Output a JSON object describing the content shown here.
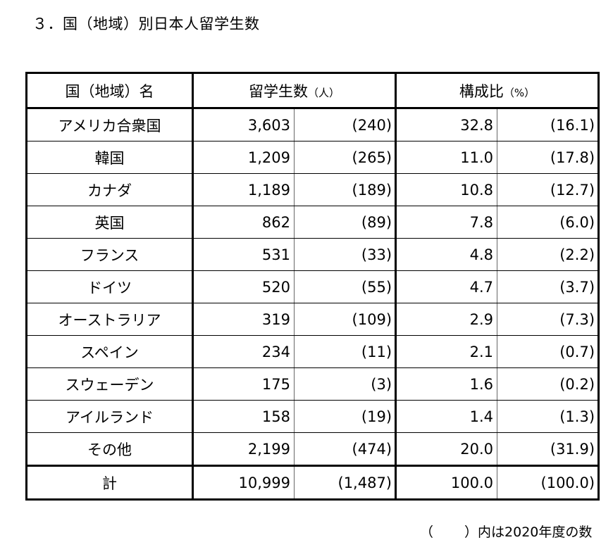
{
  "heading": "３．国（地域）別日本人留学生数",
  "header": {
    "country": "国（地域）名",
    "students": "留学生数",
    "students_unit": "（人）",
    "ratio": "構成比",
    "ratio_unit": "（%）"
  },
  "rows": [
    {
      "name": "アメリカ合衆国",
      "count": "3,603",
      "count_2020": "(240)",
      "ratio": "32.8",
      "ratio_2020": "(16.1)"
    },
    {
      "name": "韓国",
      "count": "1,209",
      "count_2020": "(265)",
      "ratio": "11.0",
      "ratio_2020": "(17.8)"
    },
    {
      "name": "カナダ",
      "count": "1,189",
      "count_2020": "(189)",
      "ratio": "10.8",
      "ratio_2020": "(12.7)"
    },
    {
      "name": "英国",
      "count": "862",
      "count_2020": "(89)",
      "ratio": "7.8",
      "ratio_2020": "(6.0)"
    },
    {
      "name": "フランス",
      "count": "531",
      "count_2020": "(33)",
      "ratio": "4.8",
      "ratio_2020": "(2.2)"
    },
    {
      "name": "ドイツ",
      "count": "520",
      "count_2020": "(55)",
      "ratio": "4.7",
      "ratio_2020": "(3.7)"
    },
    {
      "name": "オーストラリア",
      "count": "319",
      "count_2020": "(109)",
      "ratio": "2.9",
      "ratio_2020": "(7.3)"
    },
    {
      "name": "スペイン",
      "count": "234",
      "count_2020": "(11)",
      "ratio": "2.1",
      "ratio_2020": "(0.7)"
    },
    {
      "name": "スウェーデン",
      "count": "175",
      "count_2020": "(3)",
      "ratio": "1.6",
      "ratio_2020": "(0.2)"
    },
    {
      "name": "アイルランド",
      "count": "158",
      "count_2020": "(19)",
      "ratio": "1.4",
      "ratio_2020": "(1.3)"
    },
    {
      "name": "その他",
      "count": "2,199",
      "count_2020": "(474)",
      "ratio": "20.0",
      "ratio_2020": "(31.9)"
    }
  ],
  "total": {
    "name": "計",
    "count": "10,999",
    "count_2020": "(1,487)",
    "ratio": "100.0",
    "ratio_2020": "(100.0)"
  },
  "note": {
    "open": "（",
    "close": "）内は2020年度の数"
  }
}
